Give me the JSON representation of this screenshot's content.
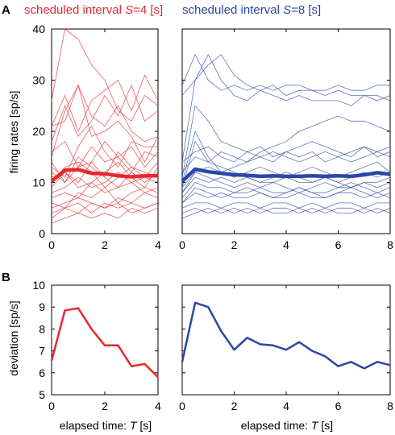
{
  "colors": {
    "red": "#e8272f",
    "blue": "#2b47a6",
    "axis": "#000000"
  },
  "panels": {
    "A": {
      "letter": "A",
      "ylabel": "firing rates [sp/s]"
    },
    "B": {
      "letter": "B",
      "ylabel": "deviation [sp/s]"
    }
  },
  "titles": {
    "red_prefix": "scheduled interval ",
    "red_var": "S",
    "red_suffix": "=4 [s]",
    "blue_prefix": "scheduled interval ",
    "blue_var": "S",
    "blue_suffix": "=8 [s]"
  },
  "xlabel": {
    "prefix": "elapsed time: ",
    "var": "T",
    "suffix": " [s]"
  },
  "chart_data": [
    {
      "id": "A_red",
      "type": "line",
      "ylim": [
        0,
        40
      ],
      "xlim": [
        0,
        4
      ],
      "yticks": [
        "0",
        "10",
        "20",
        "30",
        "40"
      ],
      "xticks": [
        "0",
        "2",
        "4"
      ],
      "x": [
        0,
        0.5,
        1,
        1.5,
        2,
        2.5,
        3,
        3.5,
        4
      ],
      "mean": [
        10.2,
        12.4,
        12.5,
        11.8,
        11.7,
        11.3,
        11.1,
        11.3,
        11.3
      ],
      "trials": [
        [
          26,
          40,
          38,
          33,
          30,
          24,
          22,
          27,
          25
        ],
        [
          21,
          27,
          20,
          26,
          28,
          30,
          24,
          31,
          26
        ],
        [
          18,
          25,
          19,
          22,
          27,
          23,
          29,
          22,
          24
        ],
        [
          21,
          22,
          29,
          23,
          21,
          25,
          20,
          18,
          19
        ],
        [
          15,
          24,
          29,
          19,
          20,
          22,
          19,
          14,
          19
        ],
        [
          13,
          11,
          17,
          21,
          16,
          13,
          18,
          17,
          17
        ],
        [
          12,
          10,
          13,
          14,
          18,
          15,
          12,
          16,
          15
        ],
        [
          11,
          12,
          9,
          10,
          12,
          14,
          11,
          9,
          13
        ],
        [
          10,
          13,
          14,
          12,
          9,
          11,
          13,
          12,
          11
        ],
        [
          9,
          12,
          10,
          14,
          11,
          9,
          12,
          10,
          12
        ],
        [
          8,
          9,
          11,
          9,
          10,
          12,
          10,
          11,
          10
        ],
        [
          7,
          8,
          7,
          10,
          8,
          9,
          10,
          8,
          9
        ],
        [
          6,
          5,
          8,
          7,
          9,
          6,
          8,
          9,
          8
        ],
        [
          5,
          6,
          7,
          6,
          5,
          7,
          6,
          8,
          7
        ],
        [
          4,
          5,
          6,
          4,
          6,
          5,
          6,
          5,
          6
        ],
        [
          3,
          5,
          4,
          6,
          5,
          6,
          4,
          5,
          6
        ],
        [
          2,
          3,
          4,
          3,
          4,
          3,
          5,
          4,
          5
        ],
        [
          14,
          10,
          15,
          13,
          11,
          16,
          13,
          11,
          14
        ],
        [
          16,
          18,
          13,
          17,
          14,
          15,
          17,
          13,
          16
        ]
      ]
    },
    {
      "id": "A_blue",
      "type": "line",
      "ylim": [
        0,
        40
      ],
      "xlim": [
        0,
        8
      ],
      "yticks": [
        "0",
        "10",
        "20",
        "30",
        "40"
      ],
      "xticks": [
        "0",
        "2",
        "4",
        "6",
        "8"
      ],
      "x": [
        0,
        0.5,
        1,
        1.5,
        2,
        2.5,
        3,
        3.5,
        4,
        4.5,
        5,
        5.5,
        6,
        6.5,
        7,
        7.5,
        8
      ],
      "mean": [
        10.2,
        12.6,
        12.1,
        11.8,
        11.5,
        11.4,
        11.2,
        11.3,
        11.2,
        11.2,
        11.3,
        11.2,
        11.3,
        11.2,
        11.5,
        11.9,
        11.6
      ],
      "trials": [
        [
          29,
          35,
          30,
          28,
          29,
          28,
          29,
          28,
          29,
          29,
          28,
          28,
          29,
          28,
          28,
          29,
          29
        ],
        [
          27,
          30,
          33,
          35,
          31,
          29,
          28,
          29,
          27,
          28,
          28,
          27,
          28,
          27,
          27,
          26,
          27
        ],
        [
          14,
          30,
          35,
          30,
          27,
          26,
          28,
          27,
          26,
          27,
          26,
          26,
          26,
          25,
          27,
          27,
          26
        ],
        [
          11,
          25,
          22,
          18,
          17,
          16,
          17,
          15,
          16,
          17,
          18,
          17,
          16,
          15,
          17,
          16,
          17
        ],
        [
          10,
          20,
          15,
          12,
          13,
          14,
          16,
          17,
          18,
          20,
          21,
          22,
          23,
          22,
          22,
          21,
          20
        ],
        [
          9,
          18,
          14,
          13,
          12,
          11,
          10,
          10,
          11,
          10,
          10,
          11,
          10,
          9,
          10,
          10,
          11
        ],
        [
          8,
          12,
          11,
          10,
          9,
          10,
          9,
          10,
          9,
          8,
          9,
          10,
          9,
          9,
          10,
          9,
          10
        ],
        [
          7,
          10,
          9,
          9,
          8,
          8,
          9,
          8,
          8,
          9,
          8,
          8,
          9,
          10,
          9,
          8,
          9
        ],
        [
          6,
          8,
          7,
          8,
          7,
          7,
          8,
          7,
          7,
          8,
          7,
          7,
          8,
          8,
          7,
          8,
          7
        ],
        [
          5,
          6,
          6,
          5,
          6,
          6,
          5,
          6,
          6,
          5,
          6,
          5,
          6,
          6,
          5,
          6,
          6
        ],
        [
          4,
          5,
          4,
          5,
          4,
          5,
          4,
          5,
          5,
          4,
          5,
          4,
          5,
          5,
          4,
          5,
          4
        ],
        [
          3,
          4,
          5,
          4,
          5,
          4,
          5,
          4,
          4,
          5,
          4,
          5,
          4,
          4,
          5,
          4,
          5
        ],
        [
          12,
          15,
          14,
          16,
          15,
          14,
          15,
          16,
          15,
          14,
          15,
          16,
          15,
          14,
          15,
          16,
          15
        ],
        [
          14,
          16,
          17,
          15,
          14,
          16,
          15,
          14,
          16,
          15,
          16,
          14,
          15,
          16,
          17,
          15,
          16
        ],
        [
          6,
          9,
          8,
          7,
          8,
          9,
          8,
          7,
          8,
          9,
          8,
          7,
          8,
          9,
          8,
          7,
          8
        ],
        [
          8,
          11,
          10,
          11,
          10,
          11,
          10,
          11,
          12,
          11,
          10,
          11,
          10,
          11,
          12,
          11,
          12
        ],
        [
          9,
          12,
          13,
          12,
          11,
          12,
          13,
          12,
          11,
          12,
          13,
          12,
          11,
          12,
          13,
          14,
          12
        ]
      ]
    },
    {
      "id": "B_red",
      "type": "line",
      "ylim": [
        5,
        10
      ],
      "xlim": [
        0,
        4
      ],
      "yticks": [
        "5",
        "6",
        "7",
        "8",
        "9",
        "10"
      ],
      "xticks": [
        "0",
        "2",
        "4"
      ],
      "x": [
        0,
        0.5,
        1,
        1.5,
        2,
        2.5,
        3,
        3.5,
        4
      ],
      "values": [
        6.55,
        8.85,
        8.95,
        8.0,
        7.25,
        7.25,
        6.3,
        6.4,
        5.8
      ]
    },
    {
      "id": "B_blue",
      "type": "line",
      "ylim": [
        5,
        10
      ],
      "xlim": [
        0,
        8
      ],
      "yticks": [
        "5",
        "6",
        "7",
        "8",
        "9",
        "10"
      ],
      "xticks": [
        "0",
        "2",
        "4",
        "6",
        "8"
      ],
      "x": [
        0,
        0.5,
        1,
        1.5,
        2,
        2.5,
        3,
        3.5,
        4,
        4.5,
        5,
        5.5,
        6,
        6.5,
        7,
        7.5,
        8
      ],
      "values": [
        6.5,
        9.2,
        9.0,
        7.9,
        7.05,
        7.6,
        7.3,
        7.25,
        7.05,
        7.4,
        7.0,
        6.75,
        6.3,
        6.5,
        6.2,
        6.5,
        6.35
      ]
    }
  ]
}
